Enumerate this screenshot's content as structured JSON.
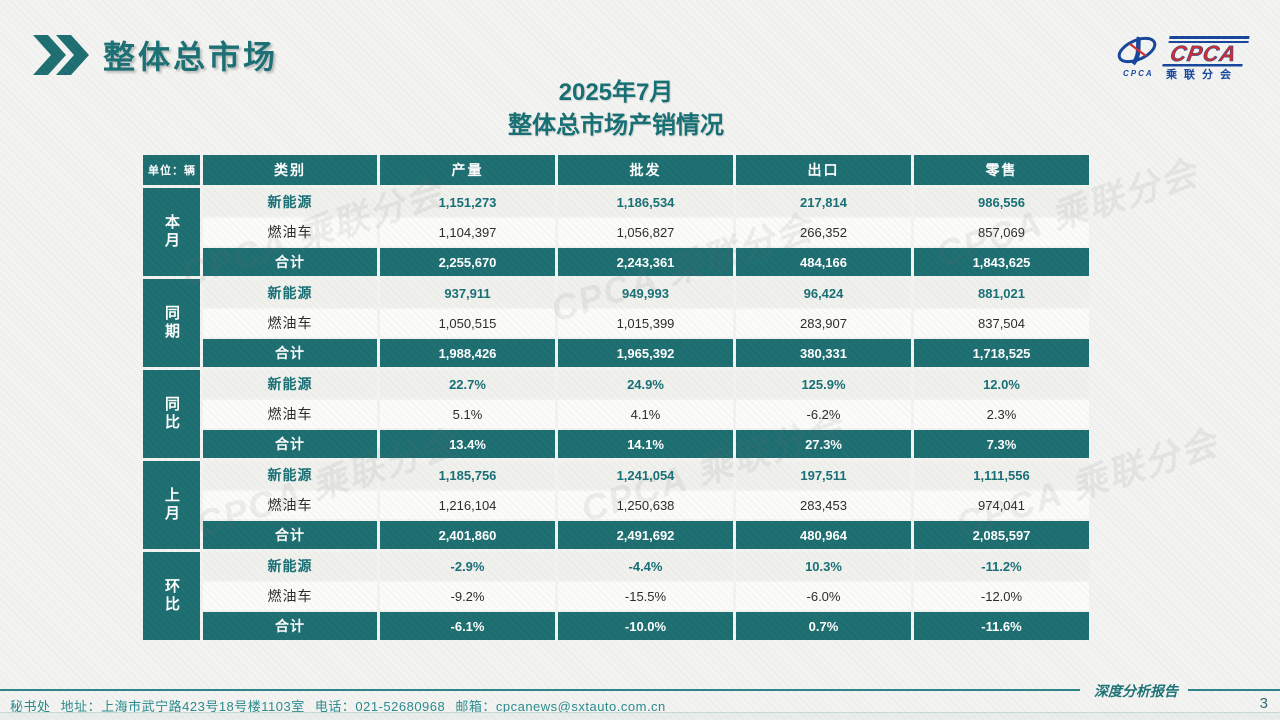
{
  "header": {
    "title": "整体总市场"
  },
  "logo": {
    "cpca": "CPCA",
    "cn_name": "乘联分会",
    "emblem_caption": "CPCA"
  },
  "subtitle": {
    "line1": "2025年7月",
    "line2": "整体总市场产销情况"
  },
  "table": {
    "unit_label": "单位：辆",
    "columns": [
      "类别",
      "产量",
      "批发",
      "出口",
      "零售"
    ],
    "groups": [
      {
        "label": "本月",
        "rows": [
          {
            "category": "新能源",
            "style": "nev",
            "values": [
              "1,151,273",
              "1,186,534",
              "217,814",
              "986,556"
            ]
          },
          {
            "category": "燃油车",
            "style": "fuel",
            "values": [
              "1,104,397",
              "1,056,827",
              "266,352",
              "857,069"
            ]
          },
          {
            "category": "合计",
            "style": "total",
            "values": [
              "2,255,670",
              "2,243,361",
              "484,166",
              "1,843,625"
            ]
          }
        ]
      },
      {
        "label": "同期",
        "rows": [
          {
            "category": "新能源",
            "style": "nev",
            "values": [
              "937,911",
              "949,993",
              "96,424",
              "881,021"
            ]
          },
          {
            "category": "燃油车",
            "style": "fuel",
            "values": [
              "1,050,515",
              "1,015,399",
              "283,907",
              "837,504"
            ]
          },
          {
            "category": "合计",
            "style": "total",
            "values": [
              "1,988,426",
              "1,965,392",
              "380,331",
              "1,718,525"
            ]
          }
        ]
      },
      {
        "label": "同比",
        "rows": [
          {
            "category": "新能源",
            "style": "nev",
            "values": [
              "22.7%",
              "24.9%",
              "125.9%",
              "12.0%"
            ]
          },
          {
            "category": "燃油车",
            "style": "fuel",
            "values": [
              "5.1%",
              "4.1%",
              "-6.2%",
              "2.3%"
            ]
          },
          {
            "category": "合计",
            "style": "total",
            "values": [
              "13.4%",
              "14.1%",
              "27.3%",
              "7.3%"
            ]
          }
        ]
      },
      {
        "label": "上月",
        "rows": [
          {
            "category": "新能源",
            "style": "nev",
            "values": [
              "1,185,756",
              "1,241,054",
              "197,511",
              "1,111,556"
            ]
          },
          {
            "category": "燃油车",
            "style": "fuel",
            "values": [
              "1,216,104",
              "1,250,638",
              "283,453",
              "974,041"
            ]
          },
          {
            "category": "合计",
            "style": "total",
            "values": [
              "2,401,860",
              "2,491,692",
              "480,964",
              "2,085,597"
            ]
          }
        ]
      },
      {
        "label": "环比",
        "rows": [
          {
            "category": "新能源",
            "style": "nev",
            "values": [
              "-2.9%",
              "-4.4%",
              "10.3%",
              "-11.2%"
            ]
          },
          {
            "category": "燃油车",
            "style": "fuel",
            "values": [
              "-9.2%",
              "-15.5%",
              "-6.0%",
              "-12.0%"
            ]
          },
          {
            "category": "合计",
            "style": "total",
            "values": [
              "-6.1%",
              "-10.0%",
              "0.7%",
              "-11.6%"
            ]
          }
        ]
      }
    ]
  },
  "chart_data": {
    "type": "table",
    "title": "2025年7月 整体总市场产销情况",
    "unit": "单位：辆",
    "columns": [
      "类别",
      "产量",
      "批发",
      "出口",
      "零售"
    ],
    "row_groups": [
      {
        "group": "本月",
        "rows": [
          [
            "新能源",
            "1,151,273",
            "1,186,534",
            "217,814",
            "986,556"
          ],
          [
            "燃油车",
            "1,104,397",
            "1,056,827",
            "266,352",
            "857,069"
          ],
          [
            "合计",
            "2,255,670",
            "2,243,361",
            "484,166",
            "1,843,625"
          ]
        ]
      },
      {
        "group": "同期",
        "rows": [
          [
            "新能源",
            "937,911",
            "949,993",
            "96,424",
            "881,021"
          ],
          [
            "燃油车",
            "1,050,515",
            "1,015,399",
            "283,907",
            "837,504"
          ],
          [
            "合计",
            "1,988,426",
            "1,965,392",
            "380,331",
            "1,718,525"
          ]
        ]
      },
      {
        "group": "同比",
        "rows": [
          [
            "新能源",
            "22.7%",
            "24.9%",
            "125.9%",
            "12.0%"
          ],
          [
            "燃油车",
            "5.1%",
            "4.1%",
            "-6.2%",
            "2.3%"
          ],
          [
            "合计",
            "13.4%",
            "14.1%",
            "27.3%",
            "7.3%"
          ]
        ]
      },
      {
        "group": "上月",
        "rows": [
          [
            "新能源",
            "1,185,756",
            "1,241,054",
            "197,511",
            "1,111,556"
          ],
          [
            "燃油车",
            "1,216,104",
            "1,250,638",
            "283,453",
            "974,041"
          ],
          [
            "合计",
            "2,401,860",
            "2,491,692",
            "480,964",
            "2,085,597"
          ]
        ]
      },
      {
        "group": "环比",
        "rows": [
          [
            "新能源",
            "-2.9%",
            "-4.4%",
            "10.3%",
            "-11.2%"
          ],
          [
            "燃油车",
            "-9.2%",
            "-15.5%",
            "-6.0%",
            "-12.0%"
          ],
          [
            "合计",
            "-6.1%",
            "-10.0%",
            "0.7%",
            "-11.6%"
          ]
        ]
      }
    ]
  },
  "footer": {
    "report_label": "深度分析报告",
    "secretariat": "秘书处",
    "address": "地址：上海市武宁路423号18号楼1103室",
    "phone": "电话：021-52680968",
    "email": "邮箱：cpcanews@sxtauto.com.cn",
    "page_number": "3"
  },
  "decor": {
    "watermark_text": "CPCA 乘联分会"
  },
  "colors": {
    "teal": "#1d6e71",
    "title_teal": "#1a7074",
    "nev_text": "#176f76",
    "logo_blue": "#16469c",
    "logo_red": "#cf2e2e"
  }
}
